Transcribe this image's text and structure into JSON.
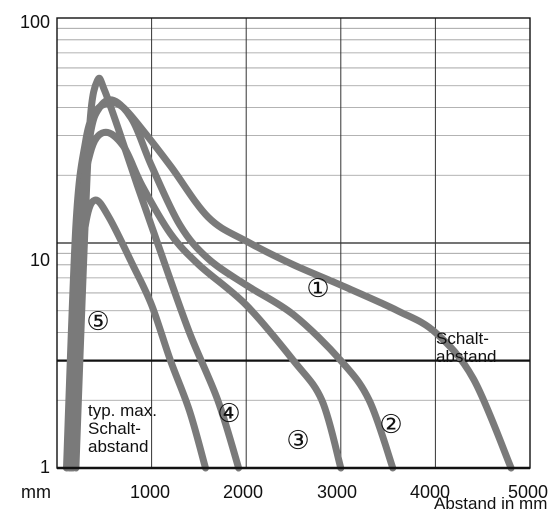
{
  "chart_data": {
    "type": "line",
    "y_scale": "log",
    "ylim": [
      1,
      100
    ],
    "xlim": [
      0,
      5000
    ],
    "x_ticks": [
      "mm",
      "1000",
      "2000",
      "3000",
      "4000",
      "5000"
    ],
    "y_ticks": [
      "1",
      "10",
      "100"
    ],
    "xlabel": "Abstand in mm",
    "ylabel": "",
    "title": "",
    "grid": true,
    "reference_line": {
      "y": 3,
      "label": "Schalt-\nabstand"
    },
    "annotation_typical": "typ. max.\nSchalt-\nabstand",
    "series": [
      {
        "marker": "①",
        "points": [
          [
            100,
            1
          ],
          [
            200,
            12
          ],
          [
            300,
            28
          ],
          [
            400,
            38
          ],
          [
            550,
            42
          ],
          [
            700,
            40
          ],
          [
            900,
            32
          ],
          [
            1200,
            22
          ],
          [
            1600,
            13
          ],
          [
            2000,
            10.2
          ],
          [
            2500,
            8
          ],
          [
            3000,
            6.5
          ],
          [
            3600,
            5
          ],
          [
            4000,
            4
          ],
          [
            4400,
            2.5
          ],
          [
            4800,
            1
          ]
        ]
      },
      {
        "marker": "②",
        "points": [
          [
            170,
            1
          ],
          [
            250,
            12
          ],
          [
            350,
            30
          ],
          [
            450,
            40
          ],
          [
            600,
            43
          ],
          [
            800,
            35
          ],
          [
            1000,
            22
          ],
          [
            1300,
            12
          ],
          [
            1600,
            8.5
          ],
          [
            2000,
            6.5
          ],
          [
            2500,
            4.8
          ],
          [
            3000,
            3
          ],
          [
            3300,
            2
          ],
          [
            3550,
            1
          ]
        ]
      },
      {
        "marker": "③",
        "points": [
          [
            150,
            1
          ],
          [
            250,
            12
          ],
          [
            350,
            25
          ],
          [
            500,
            31
          ],
          [
            700,
            27
          ],
          [
            900,
            18
          ],
          [
            1200,
            11
          ],
          [
            1500,
            8
          ],
          [
            2000,
            5.3
          ],
          [
            2500,
            3
          ],
          [
            2800,
            2
          ],
          [
            3000,
            1
          ]
        ]
      },
      {
        "marker": "④",
        "points": [
          [
            200,
            1
          ],
          [
            280,
            8
          ],
          [
            350,
            35
          ],
          [
            430,
            53
          ],
          [
            500,
            48
          ],
          [
            650,
            32
          ],
          [
            850,
            18
          ],
          [
            1100,
            9
          ],
          [
            1400,
            4
          ],
          [
            1700,
            2
          ],
          [
            1920,
            1
          ]
        ]
      },
      {
        "marker": "⑤",
        "points": [
          [
            130,
            1
          ],
          [
            200,
            5
          ],
          [
            300,
            12
          ],
          [
            400,
            15.5
          ],
          [
            550,
            13
          ],
          [
            800,
            8
          ],
          [
            1000,
            5.3
          ],
          [
            1200,
            3
          ],
          [
            1400,
            1.8
          ],
          [
            1570,
            1
          ]
        ]
      }
    ]
  }
}
